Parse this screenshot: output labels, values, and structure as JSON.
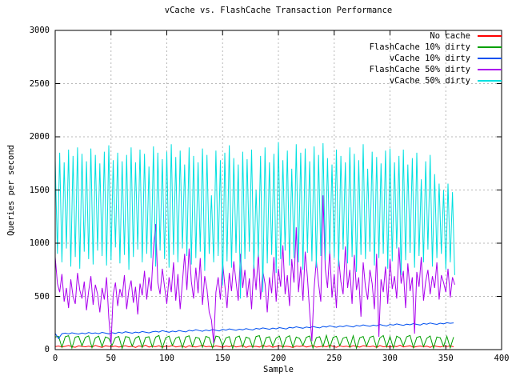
{
  "chart_data": {
    "type": "line",
    "title": "vCache vs. FlashCache Transaction Performance",
    "xlabel": "Sample",
    "ylabel": "Queries per second",
    "xlim": [
      0,
      400
    ],
    "ylim": [
      0,
      3000
    ],
    "x_ticks": [
      0,
      50,
      100,
      150,
      200,
      250,
      300,
      350,
      400
    ],
    "y_ticks": [
      0,
      500,
      1000,
      1500,
      2000,
      2500,
      3000
    ],
    "grid": true,
    "legend_position": "top-right-inside",
    "background_color": "#ffffff",
    "axis_color": "#000000",
    "grid_color": "#b8b8b8",
    "series": [
      {
        "name": "No cache",
        "color": "#ff0000",
        "x_step": 3,
        "values": [
          28,
          34,
          25,
          31,
          38,
          27,
          22,
          35,
          30,
          26,
          33,
          24,
          39,
          29,
          21,
          36,
          31,
          27,
          34,
          23,
          30,
          37,
          26,
          32,
          20,
          35,
          28,
          41,
          24,
          31,
          27,
          36,
          22,
          33,
          29,
          38,
          25,
          30,
          34,
          21,
          37,
          28,
          24,
          32,
          40,
          26,
          31,
          23,
          35,
          29,
          22,
          34,
          27,
          38,
          25,
          30,
          36,
          21,
          33,
          28,
          31,
          24,
          39,
          27,
          35,
          22,
          30,
          37,
          26,
          32,
          28,
          20,
          34,
          29,
          36,
          24,
          31,
          38,
          23,
          27,
          33,
          26,
          40,
          30,
          22,
          35,
          28,
          32,
          25,
          37,
          29,
          23,
          36,
          31,
          27,
          34,
          20,
          38,
          26,
          30,
          24,
          33,
          28,
          41,
          25,
          31,
          36,
          22,
          29,
          34,
          27,
          32,
          21,
          37,
          30,
          25,
          33,
          28,
          35,
          26
        ]
      },
      {
        "name": "FlashCache 10% dirty",
        "color": "#00a000",
        "x_step": 3,
        "values": [
          118,
          125,
          22,
          121,
          131,
          15,
          117,
          124,
          35,
          115,
          129,
          18,
          110,
          126,
          28,
          119,
          106,
          40,
          113,
          123,
          12,
          122,
          116,
          32,
          109,
          125,
          20,
          114,
          120,
          25,
          117,
          132,
          14,
          111,
          126,
          38,
          108,
          121,
          18,
          118,
          129,
          30,
          116,
          107,
          22,
          124,
          113,
          16,
          127,
          119,
          35,
          110,
          122,
          12,
          115,
          128,
          26,
          117,
          106,
          20,
          123,
          131,
          15,
          112,
          120,
          33,
          109,
          126,
          18,
          114,
          130,
          24,
          118,
          105,
          38,
          116,
          128,
          14,
          111,
          121,
          28,
          134,
          17,
          115,
          125,
          36,
          108,
          119,
          22,
          130,
          12,
          112,
          123,
          31,
          116,
          127,
          19,
          110,
          132,
          25,
          122,
          15,
          126,
          109,
          34,
          120,
          133,
          18,
          114,
          124,
          28,
          107,
          128,
          13,
          119,
          111,
          30,
          125,
          16,
          117
        ]
      },
      {
        "name": "vCache 10% dirty",
        "color": "#0050f0",
        "x_step": 3,
        "values": [
          152,
          104,
          150,
          155,
          147,
          158,
          151,
          146,
          156,
          149,
          160,
          153,
          157,
          150,
          162,
          155,
          148,
          159,
          152,
          163,
          156,
          168,
          161,
          154,
          165,
          158,
          170,
          163,
          157,
          167,
          172,
          165,
          178,
          170,
          163,
          174,
          168,
          180,
          172,
          166,
          181,
          175,
          187,
          179,
          172,
          184,
          177,
          189,
          181,
          175,
          190,
          183,
          195,
          188,
          181,
          192,
          186,
          197,
          190,
          184,
          199,
          193,
          204,
          197,
          191,
          202,
          195,
          207,
          200,
          194,
          209,
          203,
          214,
          207,
          201,
          212,
          206,
          217,
          210,
          204,
          218,
          212,
          223,
          216,
          210,
          221,
          215,
          226,
          219,
          213,
          227,
          221,
          232,
          225,
          219,
          230,
          224,
          235,
          228,
          222,
          236,
          230,
          241,
          234,
          228,
          239,
          233,
          244,
          237,
          231,
          245,
          239,
          250,
          243,
          237,
          248,
          242,
          253,
          247,
          251
        ]
      },
      {
        "name": "FlashCache 50% dirty",
        "color": "#aa00ee",
        "x_step": 2,
        "values": [
          870,
          620,
          540,
          710,
          450,
          580,
          390,
          660,
          500,
          430,
          720,
          560,
          480,
          640,
          370,
          550,
          690,
          420,
          610,
          520,
          350,
          580,
          470,
          680,
          300,
          50,
          520,
          630,
          410,
          570,
          490,
          700,
          380,
          560,
          650,
          440,
          590,
          330,
          620,
          510,
          740,
          470,
          680,
          550,
          950,
          1180,
          630,
          520,
          760,
          590,
          430,
          680,
          540,
          820,
          460,
          710,
          380,
          630,
          900,
          560,
          950,
          640,
          480,
          770,
          530,
          860,
          420,
          690,
          570,
          350,
          280,
          60,
          540,
          680,
          470,
          820,
          610,
          390,
          720,
          550,
          830,
          640,
          460,
          900,
          580,
          750,
          490,
          670,
          380,
          800,
          560,
          910,
          470,
          740,
          620,
          350,
          680,
          530,
          870,
          450,
          760,
          590,
          980,
          520,
          700,
          410,
          850,
          630,
          1150,
          540,
          780,
          460,
          920,
          680,
          350,
          80,
          570,
          840,
          620,
          450,
          1450,
          760,
          580,
          930,
          490,
          710,
          390,
          860,
          640,
          520,
          970,
          580,
          750,
          430,
          890,
          560,
          680,
          310,
          820,
          590,
          470,
          750,
          620,
          380,
          900,
          120,
          660,
          540,
          780,
          430,
          850,
          570,
          690,
          480,
          960,
          620,
          740,
          390,
          810,
          550,
          680,
          150,
          730,
          590,
          870,
          460,
          640,
          750,
          520,
          690,
          580,
          820,
          470,
          700,
          630,
          540,
          760,
          490,
          680,
          610
        ]
      },
      {
        "name": "vCache 50% dirty",
        "color": "#00e0e0",
        "x_step": 2,
        "values": [
          1780,
          900,
          1850,
          820,
          1760,
          950,
          1880,
          780,
          1820,
          870,
          1900,
          760,
          1840,
          920,
          1770,
          850,
          1890,
          800,
          1830,
          930,
          1750,
          880,
          1860,
          790,
          1920,
          840,
          1780,
          960,
          1850,
          810,
          1770,
          890,
          1830,
          750,
          1900,
          870,
          1760,
          940,
          1880,
          820,
          1840,
          900,
          1720,
          860,
          1910,
          780,
          1850,
          930,
          1790,
          850,
          1860,
          770,
          1930,
          890,
          1810,
          820,
          1870,
          950,
          1740,
          880,
          1900,
          800,
          1820,
          860,
          1760,
          920,
          1890,
          740,
          1830,
          900,
          1450,
          820,
          1870,
          880,
          1780,
          600,
          1850,
          830,
          1920,
          770,
          1800,
          910,
          1740,
          480,
          1860,
          850,
          1790,
          920,
          1880,
          760,
          1500,
          870,
          1820,
          540,
          1900,
          810,
          1760,
          890,
          1840,
          720,
          1950,
          850,
          1780,
          930,
          1870,
          790,
          1700,
          860,
          1930,
          820,
          1850,
          750,
          1890,
          910,
          1770,
          830,
          1910,
          770,
          1830,
          880,
          1940,
          840,
          1800,
          900,
          1740,
          860,
          1880,
          780,
          1820,
          940,
          1760,
          810,
          1900,
          870,
          1840,
          730,
          1780,
          890,
          1930,
          850,
          1700,
          920,
          1860,
          790,
          1810,
          860,
          1750,
          900,
          1870,
          760,
          1890,
          830,
          1760,
          950,
          1820,
          700,
          1880,
          840,
          1740,
          910,
          1800,
          770,
          1850,
          880,
          1600,
          820,
          1770,
          940,
          1830,
          780,
          1650,
          860,
          1560,
          900,
          1500,
          750,
          1560,
          820,
          1480,
          700
        ]
      }
    ]
  }
}
